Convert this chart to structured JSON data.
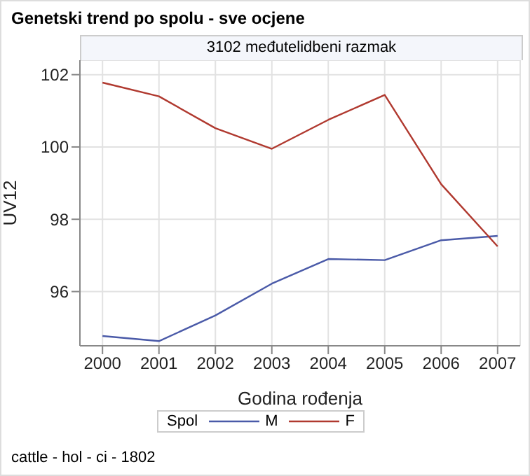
{
  "chart_data": {
    "type": "line",
    "title": "Genetski trend po spolu - sve ocjene",
    "subtitle": "3102 međutelidbeni razmak",
    "xlabel": "Godina rođenja",
    "ylabel": "UV12",
    "legend_title": "Spol",
    "annotations": [
      "cattle - hol - ci - 1802"
    ],
    "x": [
      2000,
      2001,
      2002,
      2003,
      2004,
      2005,
      2006,
      2007
    ],
    "series": [
      {
        "name": "M",
        "color": "#4a5aa8",
        "values": [
          94.77,
          94.63,
          95.34,
          96.22,
          96.9,
          96.87,
          97.42,
          97.54
        ]
      },
      {
        "name": "F",
        "color": "#b0392f",
        "values": [
          101.78,
          101.4,
          100.52,
          99.95,
          100.75,
          101.44,
          98.97,
          97.25
        ]
      }
    ],
    "xlim": [
      1999.6,
      2007.4
    ],
    "xticks": [
      2000,
      2001,
      2002,
      2003,
      2004,
      2005,
      2006,
      2007
    ],
    "ylim": [
      94.5,
      102.4
    ],
    "yticks": [
      96,
      98,
      100,
      102
    ],
    "grid": true,
    "legend": "bottom",
    "marker": "none",
    "line_style": "solid"
  }
}
